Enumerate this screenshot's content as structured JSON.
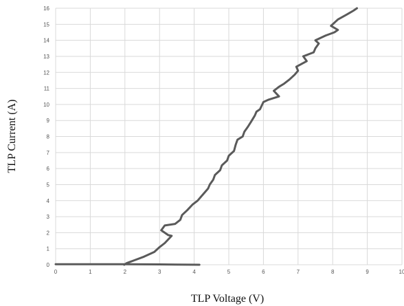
{
  "chart_data": {
    "type": "line",
    "title": "",
    "xlabel": "TLP Voltage (V)",
    "ylabel": "TLP Current (A)",
    "xlim": [
      0,
      10
    ],
    "ylim": [
      0,
      16
    ],
    "x_ticks": [
      "0",
      "1",
      "2",
      "3",
      "4",
      "5",
      "6",
      "7",
      "8",
      "9",
      "10"
    ],
    "y_ticks": [
      "0",
      "1",
      "2",
      "3",
      "4",
      "5",
      "6",
      "7",
      "8",
      "9",
      "10",
      "11",
      "12",
      "13",
      "14",
      "15",
      "16"
    ],
    "grid": true,
    "line_color": "#5a5a5a",
    "grid_color": "#d9d9d9",
    "series": [
      {
        "points": [
          [
            4.15,
            0.0
          ],
          [
            3.0,
            0.02
          ],
          [
            2.0,
            0.03
          ],
          [
            0.0,
            0.03
          ]
        ]
      },
      {
        "points": [
          [
            1.98,
            0.0
          ],
          [
            2.05,
            0.1
          ],
          [
            2.3,
            0.3
          ],
          [
            2.55,
            0.5
          ],
          [
            2.85,
            0.8
          ],
          [
            3.0,
            1.1
          ],
          [
            3.15,
            1.35
          ],
          [
            3.35,
            1.8
          ],
          [
            3.25,
            1.85
          ],
          [
            3.05,
            2.15
          ],
          [
            3.15,
            2.45
          ],
          [
            3.45,
            2.55
          ],
          [
            3.6,
            2.8
          ],
          [
            3.65,
            3.1
          ],
          [
            3.8,
            3.4
          ],
          [
            3.95,
            3.75
          ],
          [
            4.1,
            4.0
          ],
          [
            4.2,
            4.25
          ],
          [
            4.3,
            4.5
          ],
          [
            4.4,
            4.75
          ],
          [
            4.45,
            5.0
          ],
          [
            4.55,
            5.3
          ],
          [
            4.6,
            5.6
          ],
          [
            4.75,
            5.9
          ],
          [
            4.8,
            6.2
          ],
          [
            4.95,
            6.5
          ],
          [
            5.0,
            6.8
          ],
          [
            5.15,
            7.1
          ],
          [
            5.2,
            7.5
          ],
          [
            5.25,
            7.8
          ],
          [
            5.4,
            8.0
          ],
          [
            5.45,
            8.3
          ],
          [
            5.55,
            8.6
          ],
          [
            5.65,
            8.95
          ],
          [
            5.75,
            9.3
          ],
          [
            5.8,
            9.55
          ],
          [
            5.9,
            9.7
          ],
          [
            6.0,
            10.15
          ],
          [
            6.15,
            10.3
          ],
          [
            6.45,
            10.5
          ],
          [
            6.3,
            10.85
          ],
          [
            6.45,
            11.1
          ],
          [
            6.6,
            11.3
          ],
          [
            6.75,
            11.55
          ],
          [
            6.9,
            11.85
          ],
          [
            7.0,
            12.1
          ],
          [
            6.95,
            12.35
          ],
          [
            7.25,
            12.7
          ],
          [
            7.15,
            13.0
          ],
          [
            7.45,
            13.25
          ],
          [
            7.5,
            13.5
          ],
          [
            7.6,
            13.8
          ],
          [
            7.5,
            14.0
          ],
          [
            7.8,
            14.3
          ],
          [
            8.05,
            14.5
          ],
          [
            8.15,
            14.65
          ],
          [
            7.95,
            14.9
          ],
          [
            8.15,
            15.3
          ],
          [
            8.4,
            15.6
          ],
          [
            8.6,
            15.85
          ],
          [
            8.7,
            16.0
          ]
        ]
      }
    ]
  }
}
